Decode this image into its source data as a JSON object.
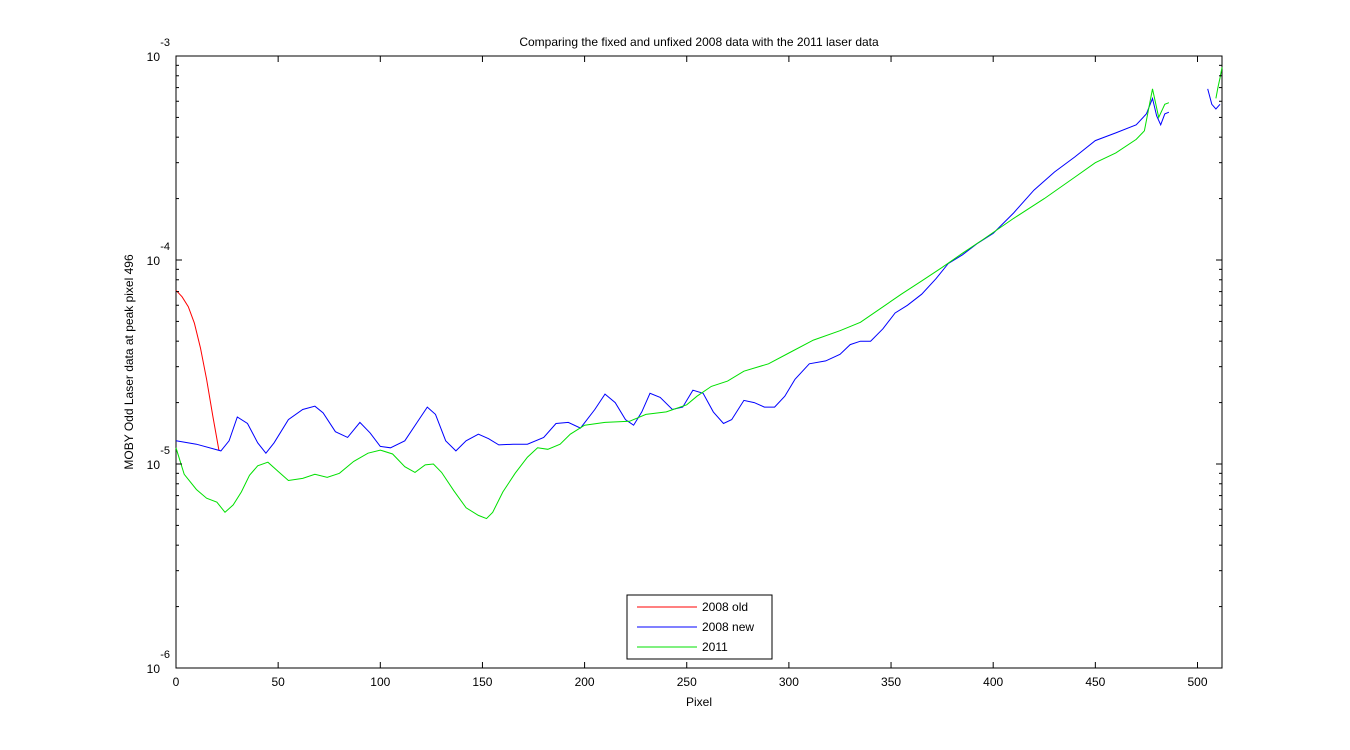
{
  "chart_data": {
    "type": "line",
    "title": "Comparing the fixed and unfixed 2008 data with the 2011 laser data",
    "xlabel": "Pixel",
    "ylabel": "MOBY Odd Laser data at peak pixel 496",
    "xlim": [
      0,
      512
    ],
    "ylim": [
      1e-06,
      0.001
    ],
    "yscale": "log",
    "xticks": [
      0,
      50,
      100,
      150,
      200,
      250,
      300,
      350,
      400,
      450,
      500
    ],
    "yticks": [
      {
        "value": 1e-06,
        "base": "10",
        "exp": "-6"
      },
      {
        "value": 1e-05,
        "base": "10",
        "exp": "-5"
      },
      {
        "value": 0.0001,
        "base": "10",
        "exp": "-4"
      },
      {
        "value": 0.001,
        "base": "10",
        "exp": "-3"
      }
    ],
    "grid": false,
    "legend_position": "bottom-center",
    "series": [
      {
        "name": "2008 old",
        "color": "#ff0000",
        "segments": [
          [
            [
              0,
              7.1e-05
            ],
            [
              3,
              6.6e-05
            ],
            [
              6,
              5.9e-05
            ],
            [
              9,
              4.9e-05
            ],
            [
              12,
              3.7e-05
            ],
            [
              15,
              2.6e-05
            ],
            [
              18,
              1.72e-05
            ],
            [
              21,
              1.17e-05
            ]
          ]
        ]
      },
      {
        "name": "2008 new",
        "color": "#0000ff",
        "segments": [
          [
            [
              0,
              1.3e-05
            ],
            [
              10,
              1.25e-05
            ],
            [
              22,
              1.16e-05
            ],
            [
              26,
              1.3e-05
            ],
            [
              30,
              1.7e-05
            ],
            [
              35,
              1.58e-05
            ],
            [
              40,
              1.27e-05
            ],
            [
              44,
              1.13e-05
            ],
            [
              48,
              1.27e-05
            ],
            [
              55,
              1.65e-05
            ],
            [
              62,
              1.85e-05
            ],
            [
              68,
              1.92e-05
            ],
            [
              72,
              1.78e-05
            ],
            [
              78,
              1.44e-05
            ],
            [
              84,
              1.35e-05
            ],
            [
              90,
              1.6e-05
            ],
            [
              95,
              1.42e-05
            ],
            [
              100,
              1.22e-05
            ],
            [
              105,
              1.2e-05
            ],
            [
              112,
              1.3e-05
            ],
            [
              118,
              1.6e-05
            ],
            [
              123,
              1.9e-05
            ],
            [
              127,
              1.75e-05
            ],
            [
              132,
              1.3e-05
            ],
            [
              137,
              1.16e-05
            ],
            [
              142,
              1.3e-05
            ],
            [
              148,
              1.4e-05
            ],
            [
              153,
              1.33e-05
            ],
            [
              158,
              1.24e-05
            ],
            [
              165,
              1.25e-05
            ],
            [
              172,
              1.25e-05
            ],
            [
              180,
              1.35e-05
            ],
            [
              186,
              1.58e-05
            ],
            [
              192,
              1.6e-05
            ],
            [
              198,
              1.5e-05
            ],
            [
              205,
              1.85e-05
            ],
            [
              210,
              2.2e-05
            ],
            [
              215,
              2e-05
            ],
            [
              220,
              1.65e-05
            ],
            [
              224,
              1.55e-05
            ],
            [
              228,
              1.8e-05
            ],
            [
              232,
              2.22e-05
            ],
            [
              237,
              2.12e-05
            ],
            [
              243,
              1.85e-05
            ],
            [
              248,
              1.9e-05
            ],
            [
              253,
              2.3e-05
            ],
            [
              258,
              2.22e-05
            ],
            [
              263,
              1.8e-05
            ],
            [
              268,
              1.58e-05
            ],
            [
              272,
              1.65e-05
            ],
            [
              278,
              2.05e-05
            ],
            [
              283,
              2e-05
            ],
            [
              288,
              1.9e-05
            ],
            [
              293,
              1.9e-05
            ],
            [
              298,
              2.15e-05
            ],
            [
              303,
              2.6e-05
            ],
            [
              310,
              3.1e-05
            ],
            [
              318,
              3.2e-05
            ],
            [
              325,
              3.45e-05
            ],
            [
              330,
              3.85e-05
            ],
            [
              335,
              4e-05
            ],
            [
              340,
              4e-05
            ],
            [
              346,
              4.6e-05
            ],
            [
              352,
              5.5e-05
            ],
            [
              358,
              6e-05
            ],
            [
              365,
              6.8e-05
            ],
            [
              372,
              8.1e-05
            ],
            [
              378,
              9.6e-05
            ],
            [
              385,
              0.000106
            ],
            [
              392,
              0.00012
            ],
            [
              400,
              0.000135
            ],
            [
              410,
              0.00017
            ],
            [
              420,
              0.00022
            ],
            [
              430,
              0.00027
            ],
            [
              440,
              0.00032
            ],
            [
              450,
              0.000385
            ],
            [
              460,
              0.00042
            ],
            [
              470,
              0.00046
            ],
            [
              475,
              0.00052
            ],
            [
              478,
              0.00062
            ],
            [
              480,
              0.00051
            ],
            [
              482,
              0.00046
            ],
            [
              484,
              0.00052
            ],
            [
              486,
              0.00053
            ]
          ],
          [
            [
              505,
              0.00069
            ],
            [
              507,
              0.00058
            ],
            [
              509,
              0.00055
            ],
            [
              511,
              0.00058
            ]
          ]
        ]
      },
      {
        "name": "2011",
        "color": "#00e000",
        "segments": [
          [
            [
              0,
              1.2e-05
            ],
            [
              4,
              8.9e-06
            ],
            [
              10,
              7.5e-06
            ],
            [
              15,
              6.8e-06
            ],
            [
              20,
              6.5e-06
            ],
            [
              24,
              5.8e-06
            ],
            [
              28,
              6.3e-06
            ],
            [
              32,
              7.3e-06
            ],
            [
              36,
              8.8e-06
            ],
            [
              40,
              9.8e-06
            ],
            [
              45,
              1.02e-05
            ],
            [
              50,
              9.2e-06
            ],
            [
              55,
              8.3e-06
            ],
            [
              62,
              8.5e-06
            ],
            [
              68,
              8.9e-06
            ],
            [
              74,
              8.6e-06
            ],
            [
              80,
              9e-06
            ],
            [
              87,
              1.03e-05
            ],
            [
              94,
              1.13e-05
            ],
            [
              100,
              1.17e-05
            ],
            [
              106,
              1.12e-05
            ],
            [
              112,
              9.7e-06
            ],
            [
              117,
              9.1e-06
            ],
            [
              122,
              9.9e-06
            ],
            [
              126,
              1e-05
            ],
            [
              130,
              9.1e-06
            ],
            [
              136,
              7.4e-06
            ],
            [
              142,
              6.1e-06
            ],
            [
              148,
              5.6e-06
            ],
            [
              152,
              5.4e-06
            ],
            [
              155,
              5.8e-06
            ],
            [
              160,
              7.3e-06
            ],
            [
              166,
              9e-06
            ],
            [
              172,
              1.08e-05
            ],
            [
              177,
              1.2e-05
            ],
            [
              182,
              1.18e-05
            ],
            [
              188,
              1.25e-05
            ],
            [
              193,
              1.4e-05
            ],
            [
              200,
              1.55e-05
            ],
            [
              210,
              1.6e-05
            ],
            [
              222,
              1.62e-05
            ],
            [
              230,
              1.75e-05
            ],
            [
              240,
              1.8e-05
            ],
            [
              250,
              1.95e-05
            ],
            [
              255,
              2.15e-05
            ],
            [
              262,
              2.4e-05
            ],
            [
              270,
              2.55e-05
            ],
            [
              278,
              2.85e-05
            ],
            [
              290,
              3.1e-05
            ],
            [
              300,
              3.5e-05
            ],
            [
              312,
              4.05e-05
            ],
            [
              325,
              4.5e-05
            ],
            [
              335,
              4.95e-05
            ],
            [
              345,
              5.8e-05
            ],
            [
              355,
              6.8e-05
            ],
            [
              365,
              7.9e-05
            ],
            [
              375,
              9.2e-05
            ],
            [
              385,
              0.000108
            ],
            [
              395,
              0.000126
            ],
            [
              410,
              0.00016
            ],
            [
              425,
              0.0002
            ],
            [
              440,
              0.000255
            ],
            [
              450,
              0.0003
            ],
            [
              460,
              0.000335
            ],
            [
              470,
              0.00039
            ],
            [
              474,
              0.00043
            ],
            [
              478,
              0.00069
            ],
            [
              481,
              0.0005
            ],
            [
              484,
              0.00058
            ],
            [
              486,
              0.00059
            ]
          ],
          [
            [
              509,
              0.00062
            ],
            [
              510,
              0.0007
            ],
            [
              511,
              0.00078
            ],
            [
              512,
              0.00088
            ]
          ]
        ]
      }
    ]
  }
}
